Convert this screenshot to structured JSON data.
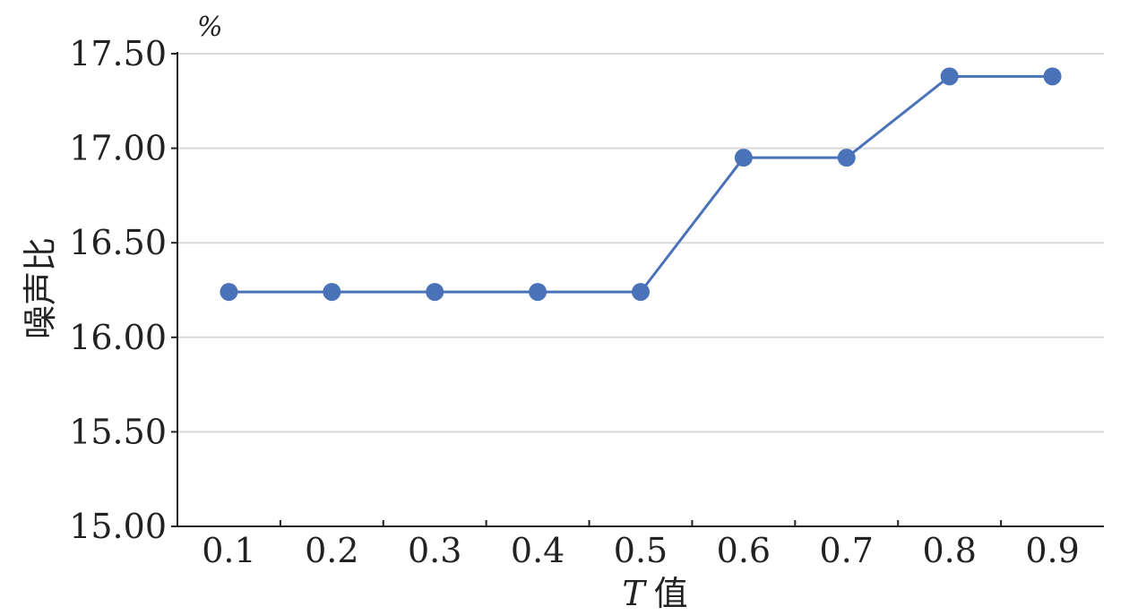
{
  "chart_data": {
    "type": "line",
    "title": "",
    "xlabel_var": "T",
    "xlabel_text": "值",
    "ylabel": "噪声比",
    "y_unit": "%",
    "categories": [
      "0.1",
      "0.2",
      "0.3",
      "0.4",
      "0.5",
      "0.6",
      "0.7",
      "0.8",
      "0.9"
    ],
    "series": [
      {
        "values": [
          16.24,
          16.24,
          16.24,
          16.24,
          16.24,
          16.95,
          16.95,
          17.38,
          17.38
        ]
      }
    ],
    "ylim": [
      15.0,
      17.5
    ],
    "yticks": [
      "15.00",
      "15.50",
      "16.00",
      "16.50",
      "17.00",
      "17.50"
    ],
    "grid": true,
    "series_color": "#4a72b8",
    "grid_color": "#d9d9d9",
    "axis_color": "#222222"
  }
}
